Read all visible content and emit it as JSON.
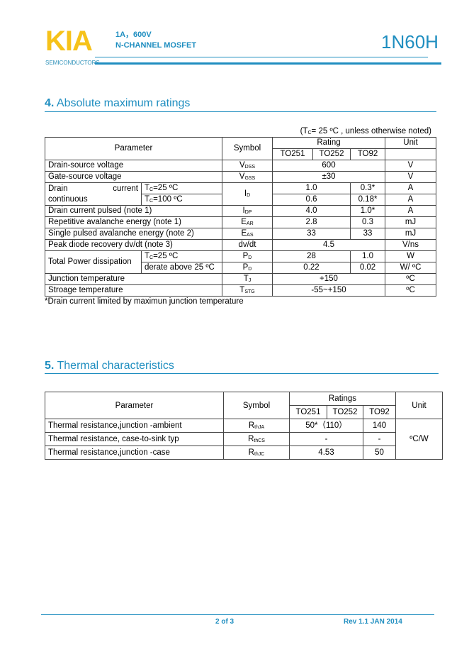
{
  "header": {
    "logo": "KIA",
    "logo_sub": "SEMICONDUCTORS",
    "line1": "1A，600V",
    "line2": "N-CHANNEL MOSFET",
    "part": "1N60H",
    "logo_color": "#f6c21a",
    "accent": "#1f8ec0"
  },
  "s4": {
    "num": "4.",
    "title": "Absolute maximum ratings",
    "cond": "(T_C= 25 ºC , unless otherwise noted)",
    "cond_pre": "(T",
    "cond_sub": "C",
    "cond_post": "= 25 ºC , unless otherwise noted)",
    "h": {
      "param": "Parameter",
      "symbol": "Symbol",
      "rating": "Rating",
      "unit": "Unit",
      "p1": "TO251",
      "p2": "TO252",
      "p3": "TO92"
    },
    "rows": {
      "vdss": {
        "param": "Drain-source voltage",
        "sym": "V",
        "sub": "DSS",
        "val": "600",
        "unit": "V"
      },
      "vgss": {
        "param": "Gate-source voltage",
        "sym": "V",
        "sub": "GSS",
        "val": "±30",
        "unit": "V"
      },
      "id": {
        "param1": "Drain",
        "param2": "current",
        "param3": "continuous",
        "c1": "T",
        "c1sub": "C",
        "c1post": "=25 ºC",
        "c2": "T",
        "c2sub": "C",
        "c2post": "=100 ºC",
        "sym": "I",
        "sub": "D",
        "v1": "1.0",
        "v1b": "0.3*",
        "v2": "0.6",
        "v2b": "0.18*",
        "unit": "A"
      },
      "idp": {
        "param": "Drain current pulsed (note 1)",
        "sym": "I",
        "sub": "DP",
        "val": "4.0",
        "valb": "1.0*",
        "unit": "A"
      },
      "ear": {
        "param": "Repetitive avalanche energy (note 1)",
        "sym": "E",
        "sub": "AR",
        "val": "2.8",
        "valb": "0.3",
        "unit": "mJ"
      },
      "eas": {
        "param": "Single pulsed avalanche energy (note 2)",
        "sym": "E",
        "sub": "AS",
        "val": "33",
        "valb": "33",
        "unit": "mJ"
      },
      "dvdt": {
        "param": "Peak diode recovery dv/dt (note 3)",
        "sym": "dv/dt",
        "val": "4.5",
        "unit": "V/ns"
      },
      "pd": {
        "param": "Total Power dissipation",
        "c1": "T",
        "c1sub": "C",
        "c1post": "=25 ºC",
        "c2": "derate above 25 ºC",
        "sym": "P",
        "sub": "D",
        "v1": "28",
        "v1b": "1.0",
        "u1": "W",
        "v2": "0.22",
        "v2b": "0.02",
        "u2": "W/ ºC"
      },
      "tj": {
        "param": "Junction temperature",
        "sym": "T",
        "sub": "J",
        "val": "+150",
        "unit": "ºC"
      },
      "tstg": {
        "param": "Stroage temperature",
        "sym": "T",
        "sub": "STG",
        "val": "-55~+150",
        "unit": "ºC"
      }
    },
    "note": "*Drain current limited by maximun junction temperature"
  },
  "s5": {
    "num": "5.",
    "title": "Thermal characteristics",
    "h": {
      "param": "Parameter",
      "symbol": "Symbol",
      "rating": "Ratings",
      "unit": "Unit",
      "p1": "TO251",
      "p2": "TO252",
      "p3": "TO92"
    },
    "rows": {
      "ja": {
        "param": "Thermal resistance,junction -ambient",
        "sym": "R",
        "sub": "thJA",
        "val": "50*（110）",
        "valb": "140"
      },
      "cs": {
        "param": "Thermal resistance, case-to-sink typ",
        "sym": "R",
        "sub": "thCS",
        "val": "-",
        "valb": "-"
      },
      "jc": {
        "param": "Thermal resistance,junction -case",
        "sym": "R",
        "sub": "thJC",
        "val": "4.53",
        "valb": "50"
      }
    },
    "unit": "ºC/W"
  },
  "footer": {
    "page": "2 of 3",
    "rev": "Rev 1.1 JAN 2014"
  }
}
